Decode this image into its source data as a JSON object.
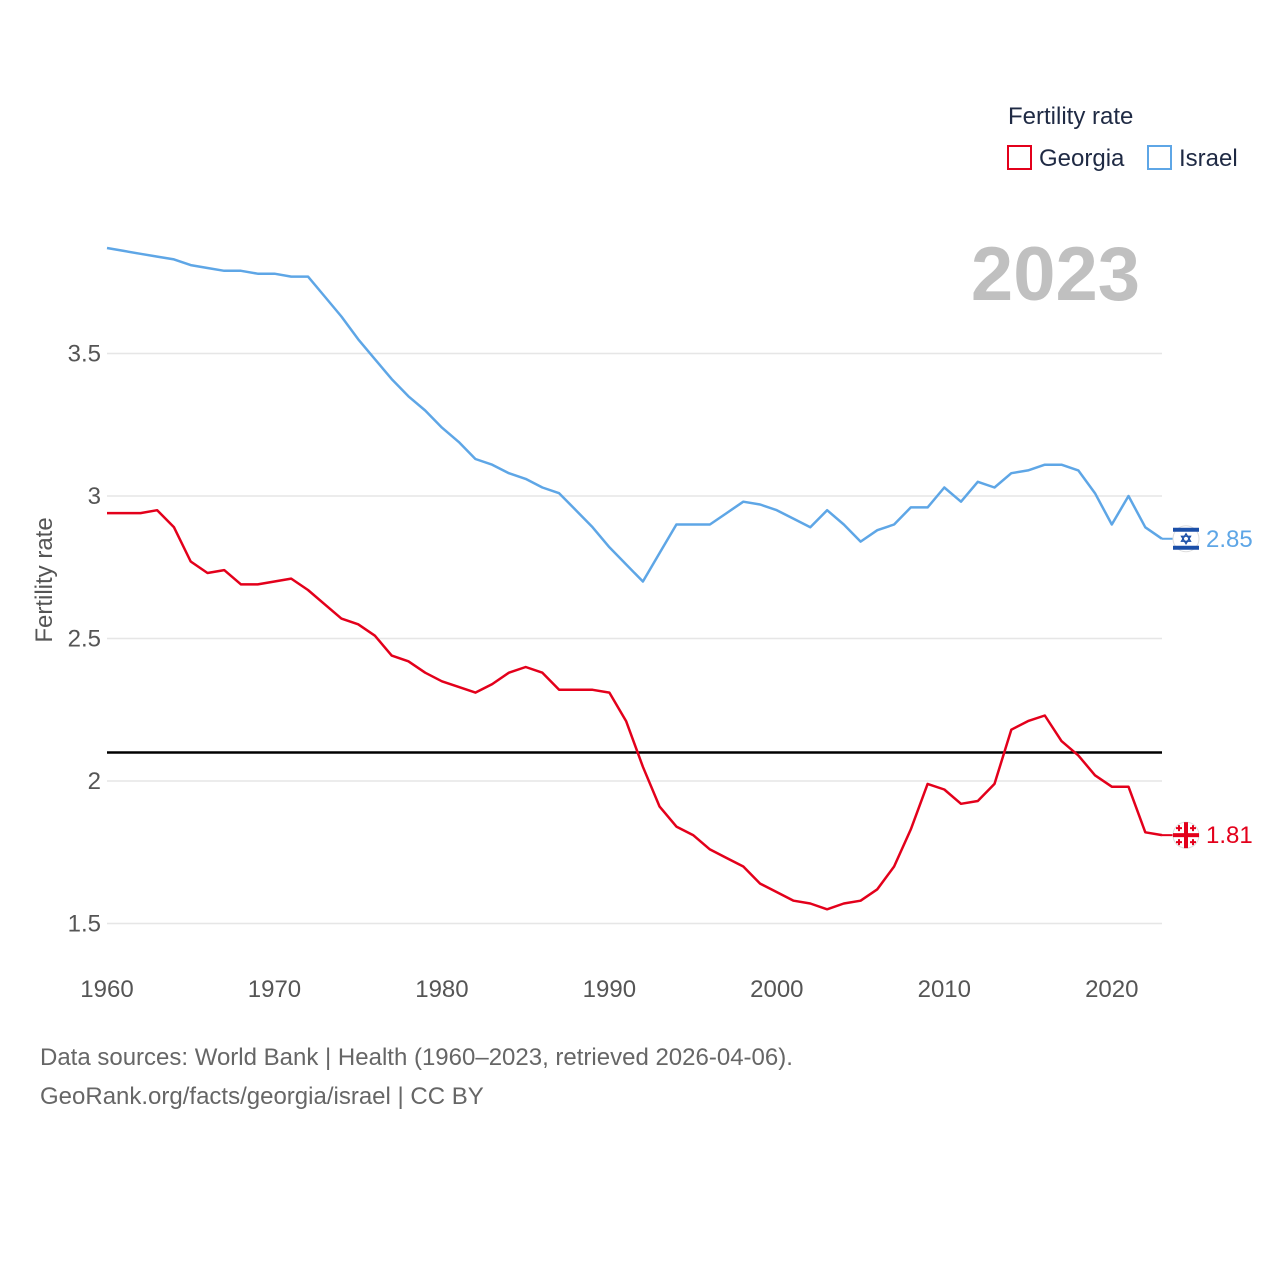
{
  "chart_data": {
    "type": "line",
    "year_label": "2023",
    "ylabel": "Fertility rate",
    "xlabel": "",
    "xlim": [
      1960,
      2023
    ],
    "ylim": [
      1.4,
      3.95
    ],
    "x_ticks": [
      1960,
      1970,
      1980,
      1990,
      2000,
      2010,
      2020
    ],
    "y_ticks": [
      {
        "value": 1.5,
        "label": "1.5"
      },
      {
        "value": 2.0,
        "label": "2"
      },
      {
        "value": 2.5,
        "label": "2.5"
      },
      {
        "value": 3.0,
        "label": "3"
      },
      {
        "value": 3.5,
        "label": "3.5"
      }
    ],
    "reference_line": {
      "value": 2.1,
      "color": "#000000"
    },
    "legend": {
      "title": "Fertility rate",
      "position": "top-right"
    },
    "start_year": 1960,
    "series": [
      {
        "name": "Georgia",
        "color": "#e3001b",
        "end_label": "1.81",
        "icon": "georgia-flag-icon",
        "values": [
          2.94,
          2.94,
          2.94,
          2.95,
          2.89,
          2.77,
          2.73,
          2.74,
          2.69,
          2.69,
          2.7,
          2.71,
          2.67,
          2.62,
          2.57,
          2.55,
          2.51,
          2.44,
          2.42,
          2.38,
          2.35,
          2.33,
          2.31,
          2.34,
          2.38,
          2.4,
          2.38,
          2.32,
          2.32,
          2.32,
          2.31,
          2.21,
          2.05,
          1.91,
          1.84,
          1.81,
          1.76,
          1.73,
          1.7,
          1.64,
          1.61,
          1.58,
          1.57,
          1.55,
          1.57,
          1.58,
          1.62,
          1.7,
          1.83,
          1.99,
          1.97,
          1.92,
          1.93,
          1.99,
          2.18,
          2.21,
          2.23,
          2.14,
          2.09,
          2.02,
          1.98,
          1.98,
          1.82,
          1.81
        ]
      },
      {
        "name": "Israel",
        "color": "#5ea6e6",
        "end_label": "2.85",
        "icon": "israel-flag-icon",
        "values": [
          3.87,
          3.86,
          3.85,
          3.84,
          3.83,
          3.81,
          3.8,
          3.79,
          3.79,
          3.78,
          3.78,
          3.77,
          3.77,
          3.7,
          3.63,
          3.55,
          3.48,
          3.41,
          3.35,
          3.3,
          3.24,
          3.19,
          3.13,
          3.11,
          3.08,
          3.06,
          3.03,
          3.01,
          2.95,
          2.89,
          2.82,
          2.76,
          2.7,
          2.8,
          2.9,
          2.9,
          2.9,
          2.94,
          2.98,
          2.97,
          2.95,
          2.92,
          2.89,
          2.95,
          2.9,
          2.84,
          2.88,
          2.9,
          2.96,
          2.96,
          3.03,
          2.98,
          3.05,
          3.03,
          3.08,
          3.09,
          3.11,
          3.11,
          3.09,
          3.01,
          2.9,
          3.0,
          2.89,
          2.85
        ]
      }
    ]
  },
  "footer": {
    "line1": "Data sources: World Bank | Health (1960–2023, retrieved 2026-04-06).",
    "line2": "GeoRank.org/facts/georgia/israel | CC BY"
  }
}
